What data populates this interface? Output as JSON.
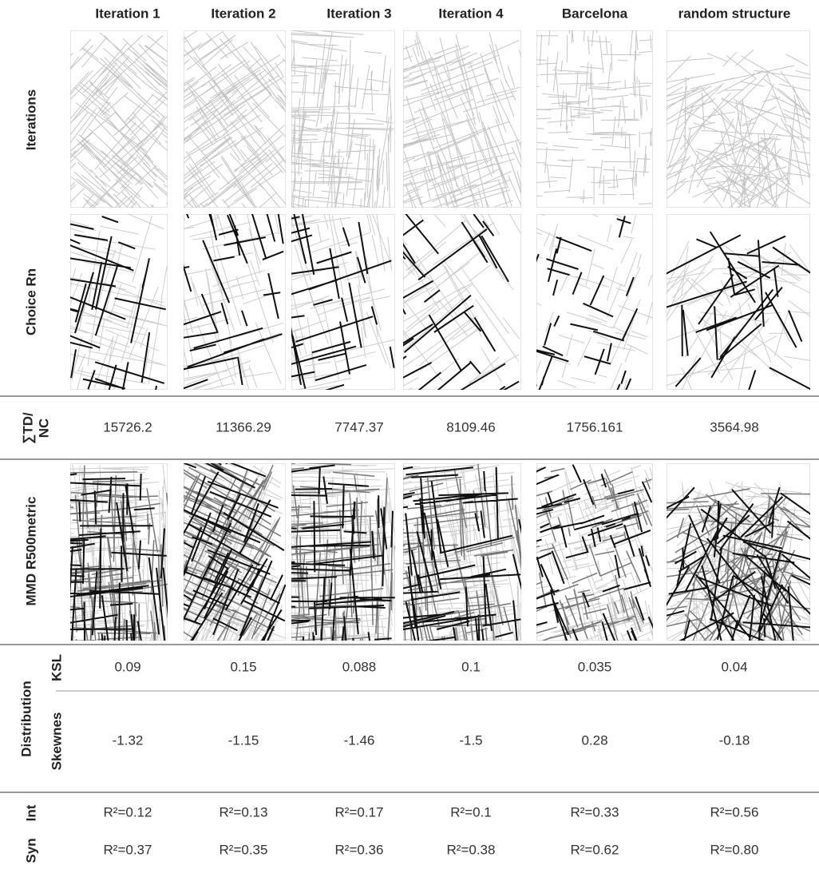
{
  "columns": [
    "Iteration 1",
    "Iteration 2",
    "Iteration 3",
    "Iteration 4",
    "Barcelona",
    "random structure"
  ],
  "row_labels": {
    "iterations": "Iterations",
    "choice": "Choice Rn",
    "td_nc": [
      "∑TD/",
      "NC"
    ],
    "mmd": "MMD R500metric",
    "distribution": "Distribution",
    "ksl": "KSL",
    "skewness": "Skewnes",
    "int": "Int",
    "syn": "Syn"
  },
  "td_nc": [
    "15726.2",
    "11366.29",
    "7747.37",
    "8109.46",
    "1756.161",
    "3564.98"
  ],
  "ksl": [
    "0.09",
    "0.15",
    "0.088",
    "0.1",
    "0.035",
    "0.04"
  ],
  "skewness": [
    "-1.32",
    "-1.15",
    "-1.46",
    "-1.5",
    "0.28",
    "-0.18"
  ],
  "int": [
    "R²=0.12",
    "R²=0.13",
    "R²=0.17",
    "R²=0.1",
    "R²=0.33",
    "R²=0.56"
  ],
  "syn": [
    "R²=0.37",
    "R²=0.35",
    "R²=0.36",
    "R²=0.38",
    "R²=0.62",
    "R²=0.80"
  ]
}
